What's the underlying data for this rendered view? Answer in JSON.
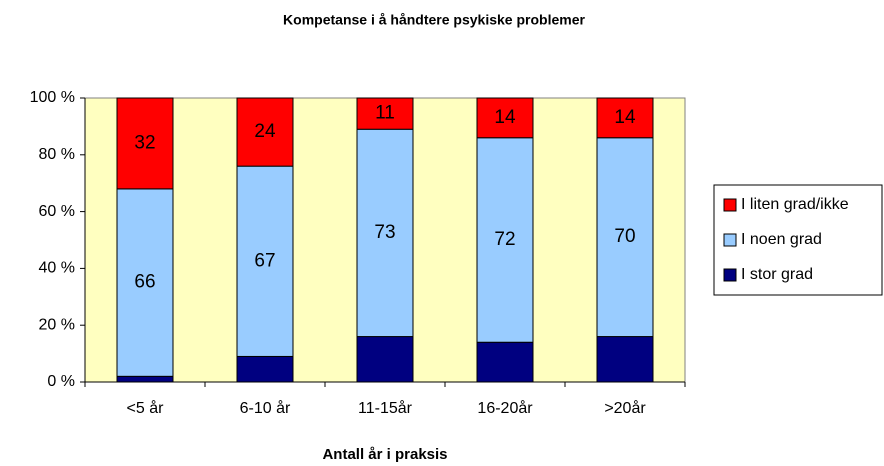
{
  "chart_data": {
    "type": "stacked_bar_100",
    "title": "Kompetanse i å håndtere psykiske problemer",
    "x_label": "Antall år i praksis",
    "categories": [
      "<5 år",
      "6-10 år",
      "11-15år",
      "16-20år",
      ">20år"
    ],
    "series": [
      {
        "name": "I stor grad",
        "color": "#000080",
        "values": [
          2,
          9,
          16,
          14,
          16
        ],
        "show_labels": false
      },
      {
        "name": "I noen grad",
        "color": "#99ccff",
        "values": [
          66,
          67,
          73,
          72,
          70
        ],
        "show_labels": true
      },
      {
        "name": "I liten grad/ikke",
        "color": "#ff0000",
        "values": [
          32,
          24,
          11,
          14,
          14
        ],
        "show_labels": true
      }
    ],
    "ylim": [
      0,
      100
    ],
    "yticks": [
      {
        "value": 0,
        "label": "0 %"
      },
      {
        "value": 20,
        "label": "20 %"
      },
      {
        "value": 40,
        "label": "40 %"
      },
      {
        "value": 60,
        "label": "60 %"
      },
      {
        "value": 80,
        "label": "80 %"
      },
      {
        "value": 100,
        "label": "100 %"
      }
    ],
    "grid": false,
    "plot_background": "#ffffc0",
    "legend": "right"
  }
}
